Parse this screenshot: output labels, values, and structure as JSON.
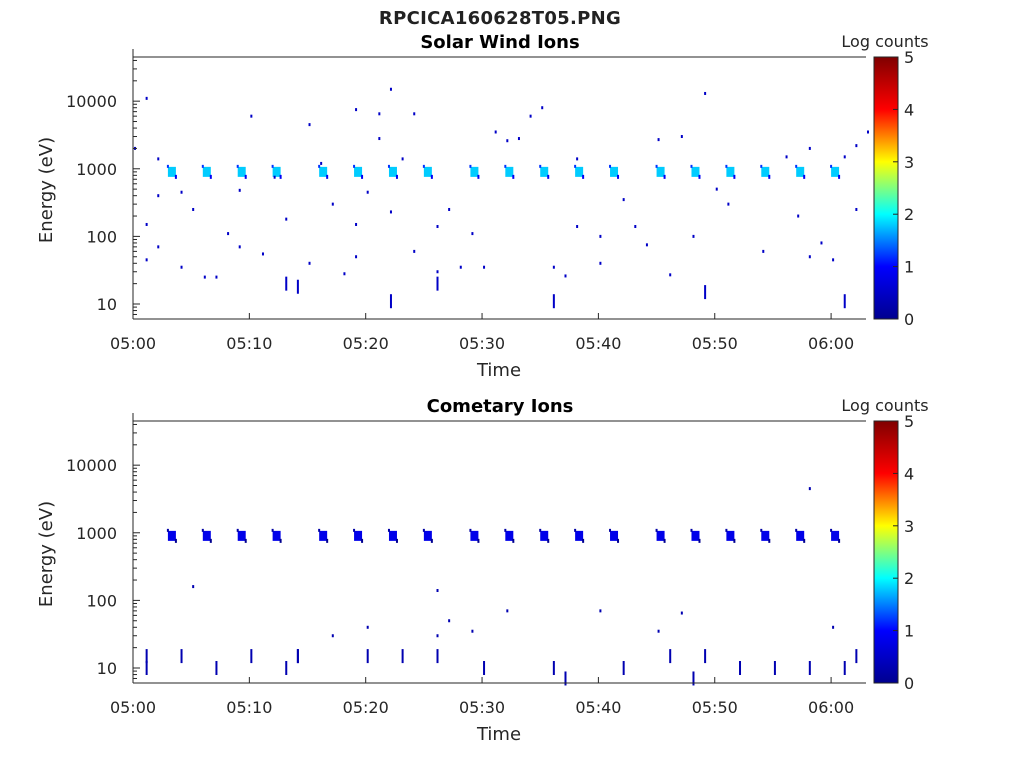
{
  "page": {
    "title": "RPCICA160628T05.PNG"
  },
  "colors": {
    "axis": "#262626",
    "colormap": [
      "#00008f",
      "#0000ff",
      "#00ffff",
      "#ffff00",
      "#ff0000",
      "#800000"
    ]
  },
  "chart_data": [
    {
      "type": "heatmap",
      "title": "Solar Wind Ions",
      "xlabel": "Time",
      "ylabel": "Energy (eV)",
      "y_scale": "log",
      "xlim": [
        "05:00",
        "06:03"
      ],
      "ylim": [
        6,
        45000
      ],
      "x_ticks": [
        "05:00",
        "05:10",
        "05:20",
        "05:30",
        "05:40",
        "05:50",
        "06:00"
      ],
      "y_ticks": [
        10,
        100,
        1000,
        10000
      ],
      "y_tick_labels": [
        "10",
        "100",
        "1000",
        "10000"
      ],
      "colorbar": {
        "label": "Log counts",
        "range": [
          0,
          5
        ],
        "ticks": [
          "0",
          "1",
          "2",
          "3",
          "4",
          "5"
        ]
      },
      "beam_times": [
        "05:03",
        "05:06",
        "05:09",
        "05:12",
        "05:16",
        "05:19",
        "05:22",
        "05:25",
        "05:29",
        "05:32",
        "05:35",
        "05:38",
        "05:41",
        "05:45",
        "05:48",
        "05:51",
        "05:54",
        "05:57",
        "06:00"
      ],
      "beam_energy_ev": 900,
      "beam_log_counts": 1.8,
      "points": [
        {
          "t": "05:00",
          "e": 2000,
          "c": 0.5
        },
        {
          "t": "05:01",
          "e": 11000,
          "c": 0.5
        },
        {
          "t": "05:01",
          "e": 150,
          "c": 0.5
        },
        {
          "t": "05:01",
          "e": 45,
          "c": 0.5
        },
        {
          "t": "05:02",
          "e": 1400,
          "c": 0.5
        },
        {
          "t": "05:02",
          "e": 400,
          "c": 0.5
        },
        {
          "t": "05:02",
          "e": 70,
          "c": 0.5
        },
        {
          "t": "05:04",
          "e": 450,
          "c": 0.5
        },
        {
          "t": "05:04",
          "e": 35,
          "c": 0.5
        },
        {
          "t": "05:05",
          "e": 250,
          "c": 0.5
        },
        {
          "t": "05:06",
          "e": 25,
          "c": 0.5
        },
        {
          "t": "05:07",
          "e": 25,
          "c": 0.5
        },
        {
          "t": "05:08",
          "e": 110,
          "c": 0.5
        },
        {
          "t": "05:09",
          "e": 480,
          "c": 0.5
        },
        {
          "t": "05:09",
          "e": 70,
          "c": 0.5
        },
        {
          "t": "05:10",
          "e": 6000,
          "c": 0.5
        },
        {
          "t": "05:11",
          "e": 55,
          "c": 0.5
        },
        {
          "t": "05:12",
          "e": 750,
          "c": 0.5
        },
        {
          "t": "05:13",
          "e": 180,
          "c": 0.5
        },
        {
          "t": "05:13",
          "e": 20,
          "c": 0.5
        },
        {
          "t": "05:14",
          "e": 18,
          "c": 0.5
        },
        {
          "t": "05:15",
          "e": 4500,
          "c": 0.5
        },
        {
          "t": "05:15",
          "e": 40,
          "c": 0.5
        },
        {
          "t": "05:16",
          "e": 1200,
          "c": 0.5
        },
        {
          "t": "05:17",
          "e": 300,
          "c": 0.5
        },
        {
          "t": "05:18",
          "e": 28,
          "c": 0.5
        },
        {
          "t": "05:19",
          "e": 7500,
          "c": 0.5
        },
        {
          "t": "05:19",
          "e": 150,
          "c": 0.5
        },
        {
          "t": "05:19",
          "e": 50,
          "c": 0.5
        },
        {
          "t": "05:20",
          "e": 450,
          "c": 0.5
        },
        {
          "t": "05:21",
          "e": 2800,
          "c": 0.5
        },
        {
          "t": "05:21",
          "e": 6500,
          "c": 0.5
        },
        {
          "t": "05:22",
          "e": 15000,
          "c": 0.5
        },
        {
          "t": "05:22",
          "e": 230,
          "c": 0.5
        },
        {
          "t": "05:22",
          "e": 11,
          "c": 0.5
        },
        {
          "t": "05:23",
          "e": 1400,
          "c": 0.5
        },
        {
          "t": "05:24",
          "e": 6500,
          "c": 0.5
        },
        {
          "t": "05:24",
          "e": 60,
          "c": 0.5
        },
        {
          "t": "05:26",
          "e": 140,
          "c": 0.5
        },
        {
          "t": "05:26",
          "e": 30,
          "c": 0.5
        },
        {
          "t": "05:26",
          "e": 20,
          "c": 0.5
        },
        {
          "t": "05:27",
          "e": 250,
          "c": 0.5
        },
        {
          "t": "05:28",
          "e": 35,
          "c": 0.5
        },
        {
          "t": "05:29",
          "e": 110,
          "c": 0.5
        },
        {
          "t": "05:30",
          "e": 35,
          "c": 0.5
        },
        {
          "t": "05:31",
          "e": 3500,
          "c": 0.5
        },
        {
          "t": "05:32",
          "e": 2600,
          "c": 0.5
        },
        {
          "t": "05:33",
          "e": 2800,
          "c": 0.5
        },
        {
          "t": "05:34",
          "e": 6000,
          "c": 0.5
        },
        {
          "t": "05:35",
          "e": 8000,
          "c": 0.5
        },
        {
          "t": "05:36",
          "e": 35,
          "c": 0.5
        },
        {
          "t": "05:36",
          "e": 11,
          "c": 0.5
        },
        {
          "t": "05:37",
          "e": 26,
          "c": 0.5
        },
        {
          "t": "05:38",
          "e": 1400,
          "c": 0.5
        },
        {
          "t": "05:38",
          "e": 140,
          "c": 0.5
        },
        {
          "t": "05:40",
          "e": 40,
          "c": 0.5
        },
        {
          "t": "05:40",
          "e": 100,
          "c": 0.5
        },
        {
          "t": "05:42",
          "e": 350,
          "c": 0.5
        },
        {
          "t": "05:43",
          "e": 140,
          "c": 0.5
        },
        {
          "t": "05:44",
          "e": 75,
          "c": 0.5
        },
        {
          "t": "05:45",
          "e": 2700,
          "c": 0.5
        },
        {
          "t": "05:46",
          "e": 27,
          "c": 0.5
        },
        {
          "t": "05:47",
          "e": 3000,
          "c": 0.5
        },
        {
          "t": "05:48",
          "e": 100,
          "c": 0.5
        },
        {
          "t": "05:49",
          "e": 13000,
          "c": 0.5
        },
        {
          "t": "05:49",
          "e": 15,
          "c": 0.5
        },
        {
          "t": "05:50",
          "e": 500,
          "c": 0.5
        },
        {
          "t": "05:51",
          "e": 300,
          "c": 0.5
        },
        {
          "t": "05:54",
          "e": 60,
          "c": 0.5
        },
        {
          "t": "05:56",
          "e": 1500,
          "c": 0.5
        },
        {
          "t": "05:57",
          "e": 200,
          "c": 0.5
        },
        {
          "t": "05:58",
          "e": 2000,
          "c": 0.5
        },
        {
          "t": "05:58",
          "e": 50,
          "c": 0.5
        },
        {
          "t": "05:59",
          "e": 80,
          "c": 0.5
        },
        {
          "t": "06:00",
          "e": 45,
          "c": 0.5
        },
        {
          "t": "06:01",
          "e": 1500,
          "c": 0.5
        },
        {
          "t": "06:01",
          "e": 11,
          "c": 0.5
        },
        {
          "t": "06:02",
          "e": 2200,
          "c": 0.5
        },
        {
          "t": "06:02",
          "e": 250,
          "c": 0.5
        },
        {
          "t": "06:03",
          "e": 3500,
          "c": 0.5
        }
      ]
    },
    {
      "type": "heatmap",
      "title": "Cometary Ions",
      "xlabel": "Time",
      "ylabel": "Energy (eV)",
      "y_scale": "log",
      "xlim": [
        "05:00",
        "06:03"
      ],
      "ylim": [
        6,
        45000
      ],
      "x_ticks": [
        "05:00",
        "05:10",
        "05:20",
        "05:30",
        "05:40",
        "05:50",
        "06:00"
      ],
      "y_ticks": [
        10,
        100,
        1000,
        10000
      ],
      "y_tick_labels": [
        "10",
        "100",
        "1000",
        "10000"
      ],
      "colorbar": {
        "label": "Log counts",
        "range": [
          0,
          5
        ],
        "ticks": [
          "0",
          "1",
          "2",
          "3",
          "4",
          "5"
        ]
      },
      "beam_times": [
        "05:03",
        "05:06",
        "05:09",
        "05:12",
        "05:16",
        "05:19",
        "05:22",
        "05:25",
        "05:29",
        "05:32",
        "05:35",
        "05:38",
        "05:41",
        "05:45",
        "05:48",
        "05:51",
        "05:54",
        "05:57",
        "06:00"
      ],
      "beam_energy_ev": 900,
      "beam_log_counts": 0.8,
      "points": [
        {
          "t": "05:01",
          "e": 15,
          "c": 0.3
        },
        {
          "t": "05:01",
          "e": 10,
          "c": 0.3
        },
        {
          "t": "05:04",
          "e": 15,
          "c": 0.3
        },
        {
          "t": "05:05",
          "e": 160,
          "c": 0.3
        },
        {
          "t": "05:07",
          "e": 10,
          "c": 0.3
        },
        {
          "t": "05:10",
          "e": 15,
          "c": 0.3
        },
        {
          "t": "05:13",
          "e": 10,
          "c": 0.3
        },
        {
          "t": "05:14",
          "e": 15,
          "c": 0.3
        },
        {
          "t": "05:14",
          "e": 15,
          "c": 0.3
        },
        {
          "t": "05:17",
          "e": 30,
          "c": 0.3
        },
        {
          "t": "05:20",
          "e": 40,
          "c": 0.3
        },
        {
          "t": "05:20",
          "e": 15,
          "c": 0.3
        },
        {
          "t": "05:23",
          "e": 15,
          "c": 0.3
        },
        {
          "t": "05:26",
          "e": 140,
          "c": 0.3
        },
        {
          "t": "05:26",
          "e": 30,
          "c": 0.3
        },
        {
          "t": "05:26",
          "e": 15,
          "c": 0.3
        },
        {
          "t": "05:27",
          "e": 50,
          "c": 0.3
        },
        {
          "t": "05:29",
          "e": 35,
          "c": 0.3
        },
        {
          "t": "05:30",
          "e": 10,
          "c": 0.3
        },
        {
          "t": "05:32",
          "e": 70,
          "c": 0.3
        },
        {
          "t": "05:36",
          "e": 10,
          "c": 0.3
        },
        {
          "t": "05:37",
          "e": 7,
          "c": 0.3
        },
        {
          "t": "05:40",
          "e": 70,
          "c": 0.3
        },
        {
          "t": "05:42",
          "e": 10,
          "c": 0.3
        },
        {
          "t": "05:45",
          "e": 35,
          "c": 0.3
        },
        {
          "t": "05:46",
          "e": 15,
          "c": 0.3
        },
        {
          "t": "05:47",
          "e": 65,
          "c": 0.3
        },
        {
          "t": "05:48",
          "e": 7,
          "c": 0.3
        },
        {
          "t": "05:49",
          "e": 15,
          "c": 0.3
        },
        {
          "t": "05:52",
          "e": 10,
          "c": 0.3
        },
        {
          "t": "05:55",
          "e": 10,
          "c": 0.3
        },
        {
          "t": "05:58",
          "e": 4500,
          "c": 0.3
        },
        {
          "t": "05:58",
          "e": 10,
          "c": 0.3
        },
        {
          "t": "06:00",
          "e": 40,
          "c": 0.3
        },
        {
          "t": "06:01",
          "e": 10,
          "c": 0.3
        },
        {
          "t": "06:02",
          "e": 15,
          "c": 0.3
        }
      ]
    }
  ]
}
